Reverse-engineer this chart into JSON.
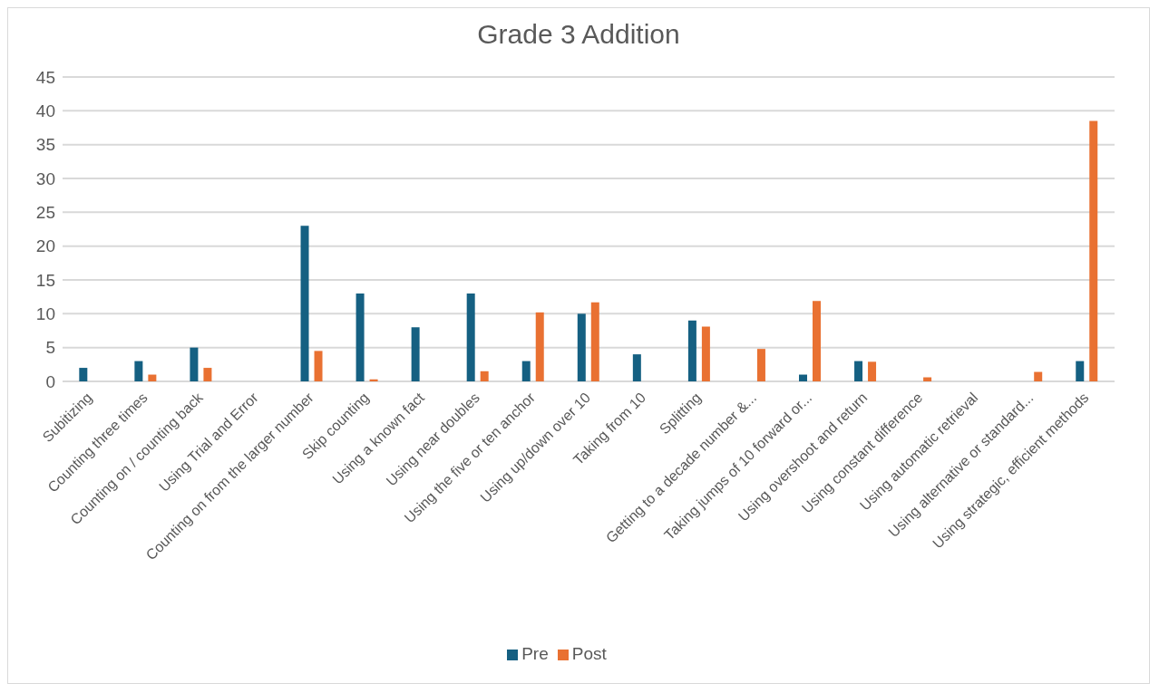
{
  "chart_data": {
    "type": "bar",
    "title": "Grade 3 Addition",
    "categories": [
      "Subitizing",
      "Counting three times",
      "Counting on / counting back",
      "Using Trial and Error",
      "Counting on from the larger number",
      "Skip counting",
      "Using a known fact",
      "Using near doubles",
      "Using the five or ten anchor",
      "Using up/down over 10",
      "Taking from 10",
      "Splitting",
      "Getting to a decade number &...",
      "Taking jumps of 10 forward or...",
      "Using overshoot and return",
      "Using constant difference",
      "Using automatic retrieval",
      "Using alternative or standard...",
      "Using strategic, efficient methods"
    ],
    "series": [
      {
        "name": "Pre",
        "color": "#156082",
        "values": [
          2,
          3,
          5,
          null,
          23,
          13,
          8,
          13,
          3,
          10,
          4,
          9,
          null,
          1,
          3,
          null,
          null,
          null,
          3
        ]
      },
      {
        "name": "Post",
        "color": "#e97132",
        "values": [
          null,
          1,
          2,
          null,
          4.5,
          0.3,
          null,
          1.5,
          10.2,
          11.7,
          null,
          8.1,
          4.8,
          11.9,
          2.9,
          0.6,
          null,
          1.4,
          38.5
        ]
      }
    ],
    "ylim": [
      0,
      45
    ],
    "yticks": [
      0,
      5,
      10,
      15,
      20,
      25,
      30,
      35,
      40,
      45
    ],
    "grid": "y",
    "legend": "bottom"
  }
}
